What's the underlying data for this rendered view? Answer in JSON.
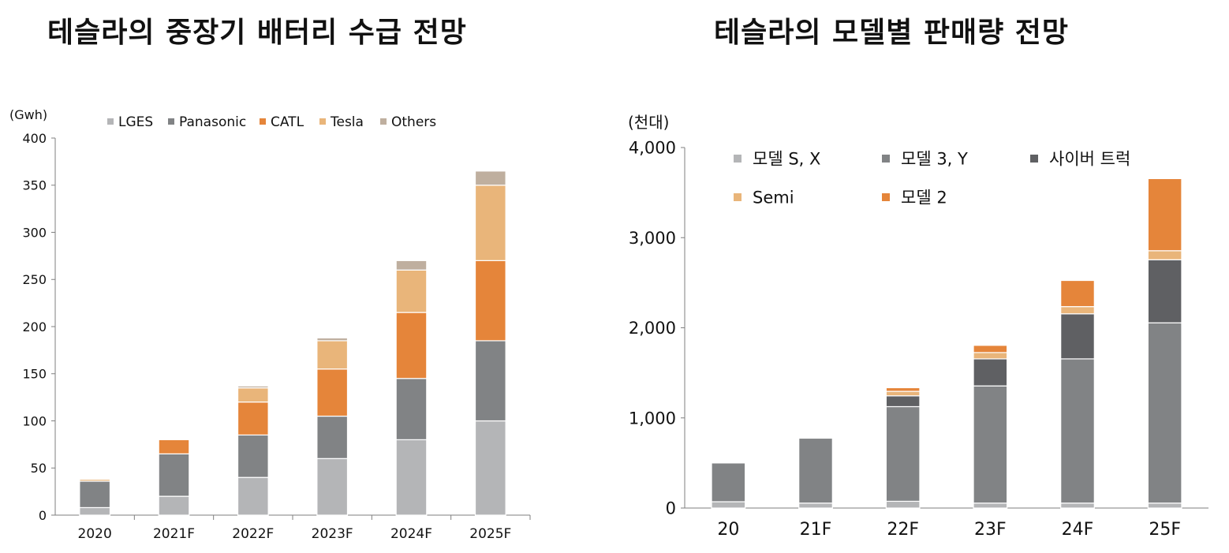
{
  "colors": {
    "LGES": "#b4b5b7",
    "Panasonic": "#818385",
    "CATL": "#e5853a",
    "Tesla": "#e9b57a",
    "Others": "#bfaf9f",
    "model_sx": "#b4b5b7",
    "model_3y": "#818385",
    "cybertruck": "#5f6063",
    "semi": "#e9b57a",
    "model_2": "#e5853a",
    "axis": "#7f7f7f"
  },
  "chart_data": [
    {
      "type": "bar",
      "stacked": true,
      "title": "테슬라의 중장기 배터리 수급 전망",
      "unit_label": "(Gwh)",
      "categories": [
        "2020",
        "2021F",
        "2022F",
        "2023F",
        "2024F",
        "2025F"
      ],
      "series": [
        {
          "name": "LGES",
          "color_key": "LGES",
          "values": [
            8,
            20,
            40,
            60,
            80,
            100
          ]
        },
        {
          "name": "Panasonic",
          "color_key": "Panasonic",
          "values": [
            28,
            45,
            45,
            45,
            65,
            85
          ]
        },
        {
          "name": "CATL",
          "color_key": "CATL",
          "values": [
            0,
            15,
            35,
            50,
            70,
            85
          ]
        },
        {
          "name": "Tesla",
          "color_key": "Tesla",
          "values": [
            2,
            0,
            15,
            30,
            45,
            80
          ]
        },
        {
          "name": "Others",
          "color_key": "Others",
          "values": [
            0,
            0,
            2,
            3,
            10,
            15
          ]
        }
      ],
      "ylim": [
        0,
        400
      ],
      "yticks": [
        "0",
        "50",
        "100",
        "150",
        "200",
        "250",
        "300",
        "350",
        "400"
      ],
      "legend_position": "top",
      "grid": false
    },
    {
      "type": "bar",
      "stacked": true,
      "title": "테슬라의 모델별 판매량 전망",
      "unit_label": "(천대)",
      "categories": [
        "20",
        "21F",
        "22F",
        "23F",
        "24F",
        "25F"
      ],
      "series": [
        {
          "name": "모델 S, X",
          "color_key": "model_sx",
          "values": [
            70,
            55,
            75,
            55,
            55,
            55
          ]
        },
        {
          "name": "모델 3, Y",
          "color_key": "model_3y",
          "values": [
            430,
            720,
            1050,
            1300,
            1600,
            2000
          ]
        },
        {
          "name": "사이버 트럭",
          "color_key": "cybertruck",
          "values": [
            0,
            0,
            120,
            300,
            500,
            700
          ]
        },
        {
          "name": "Semi",
          "color_key": "semi",
          "values": [
            0,
            0,
            50,
            70,
            80,
            100
          ]
        },
        {
          "name": "모델 2",
          "color_key": "model_2",
          "values": [
            0,
            0,
            40,
            80,
            290,
            800
          ]
        }
      ],
      "ylim": [
        0,
        4000
      ],
      "yticks": [
        "0",
        "1,000",
        "2,000",
        "3,000",
        "4,000"
      ],
      "legend_position": "top-left",
      "grid": false
    }
  ]
}
